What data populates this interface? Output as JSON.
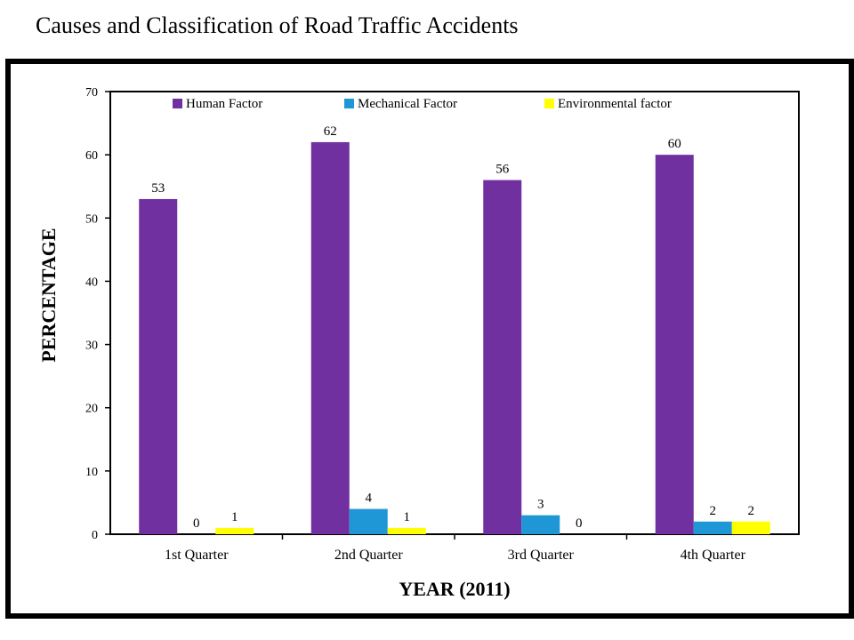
{
  "page": {
    "title": "Causes and Classification of Road Traffic Accidents"
  },
  "chart_data": {
    "type": "bar",
    "title": "",
    "xlabel": "YEAR (2011)",
    "ylabel": "PERCENTAGE",
    "categories": [
      "1st Quarter",
      "2nd Quarter",
      "3rd Quarter",
      "4th Quarter"
    ],
    "ylim": [
      0,
      70
    ],
    "yticks": [
      0,
      10,
      20,
      30,
      40,
      50,
      60,
      70
    ],
    "grid": false,
    "legend_position": "top",
    "series": [
      {
        "name": "Human Factor",
        "color": "#7030A0",
        "values": [
          53,
          62,
          56,
          60
        ]
      },
      {
        "name": "Mechanical Factor",
        "color": "#1F97D6",
        "values": [
          0,
          4,
          3,
          2
        ]
      },
      {
        "name": "Environmental factor",
        "color": "#FFFF00",
        "values": [
          1,
          1,
          0,
          2
        ]
      }
    ]
  }
}
